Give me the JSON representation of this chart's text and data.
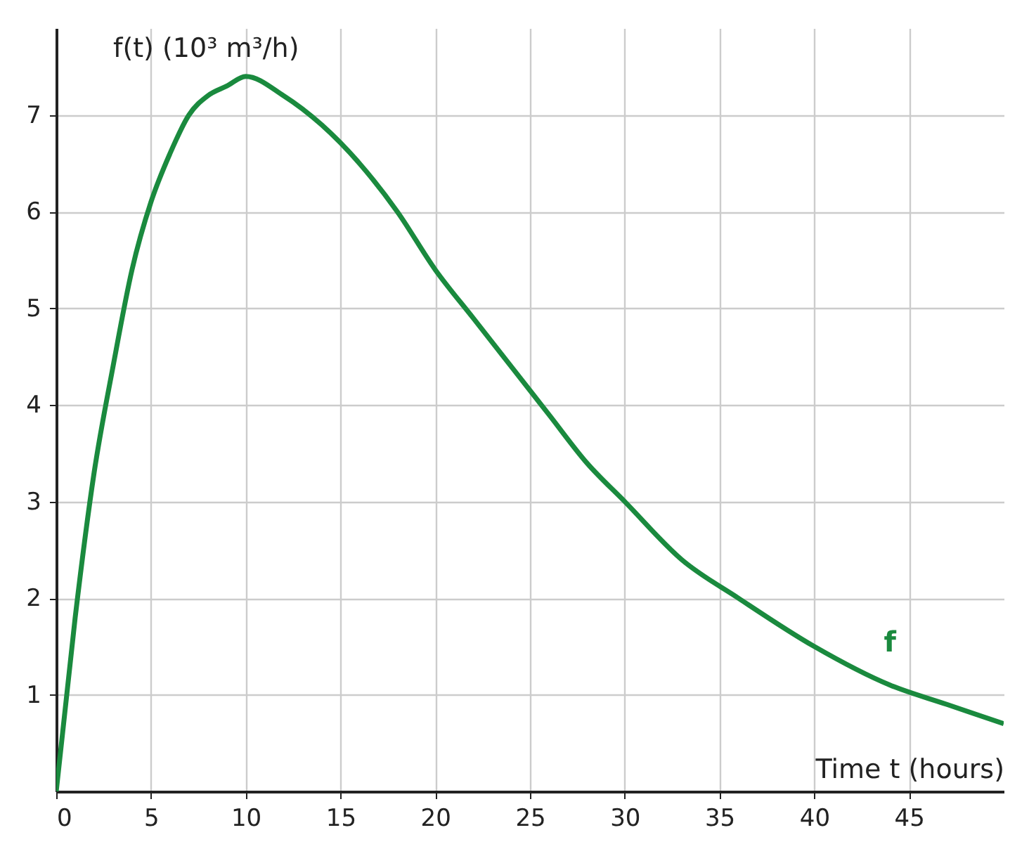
{
  "chart_data": {
    "type": "line",
    "xlabel": "Time t (hours)",
    "ylabel": "f(t) (10³ m³/h)",
    "x": [
      0,
      1,
      2,
      3,
      4,
      5,
      6,
      7,
      8,
      9,
      10,
      12,
      14,
      16,
      18,
      20,
      22,
      24,
      26,
      28,
      30,
      33,
      36,
      40,
      44,
      47,
      50
    ],
    "series": [
      {
        "name": "f",
        "color": "#1a8a3e",
        "values": [
          0,
          1.8,
          3.3,
          4.4,
          5.4,
          6.1,
          6.6,
          7.0,
          7.2,
          7.3,
          7.4,
          7.2,
          6.9,
          6.5,
          6.0,
          5.4,
          4.9,
          4.4,
          3.9,
          3.4,
          3.0,
          2.4,
          2.0,
          1.5,
          1.1,
          0.9,
          0.7
        ]
      }
    ],
    "xlim": [
      0,
      50
    ],
    "ylim": [
      0,
      7.9
    ],
    "xticks": [
      0,
      5,
      10,
      15,
      20,
      25,
      30,
      35,
      40,
      45
    ],
    "yticks": [
      1,
      2,
      3,
      4,
      5,
      6,
      7
    ],
    "grid": true,
    "legend": false,
    "marker": "none",
    "line_style": "solid"
  }
}
